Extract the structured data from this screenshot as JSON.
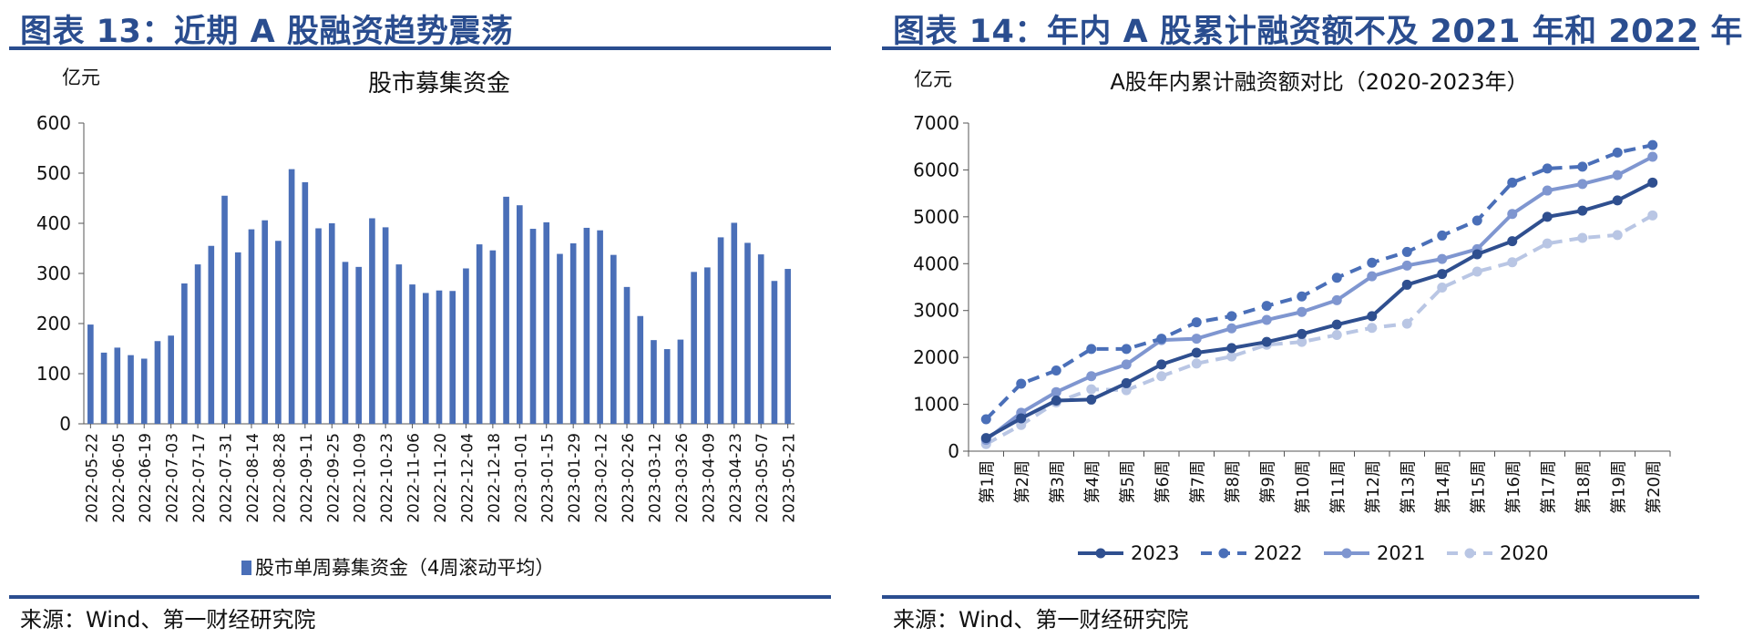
{
  "left": {
    "fig_title": "图表 13：近期 A 股融资趋势震荡",
    "source": "来源：Wind、第一财经研究院",
    "chart_data": {
      "type": "bar",
      "title": "股市募集资金",
      "unit": "亿元",
      "ylim": [
        0,
        600
      ],
      "yticks": [
        0,
        100,
        200,
        300,
        400,
        500,
        600
      ],
      "legend": "股市单周募集资金（4周滚动平均）",
      "legend_position": "bottom",
      "color": "#4a6fb8",
      "tick_labels": [
        "2022-05-22",
        "2022-06-05",
        "2022-06-19",
        "2022-07-03",
        "2022-07-17",
        "2022-07-31",
        "2022-08-14",
        "2022-08-28",
        "2022-09-11",
        "2022-09-25",
        "2022-10-09",
        "2022-10-23",
        "2022-11-06",
        "2022-11-20",
        "2022-12-04",
        "2022-12-18",
        "2023-01-01",
        "2023-01-15",
        "2023-01-29",
        "2023-02-12",
        "2023-02-26",
        "2023-03-12",
        "2023-03-26",
        "2023-04-09",
        "2023-04-23",
        "2023-05-07",
        "2023-05-21"
      ],
      "values": [
        198,
        142,
        152,
        137,
        130,
        165,
        176,
        280,
        318,
        355,
        455,
        342,
        388,
        406,
        365,
        508,
        482,
        390,
        400,
        323,
        313,
        410,
        392,
        318,
        278,
        261,
        266,
        265,
        310,
        358,
        346,
        453,
        436,
        389,
        402,
        339,
        360,
        391,
        386,
        337,
        273,
        215,
        167,
        149,
        168,
        303,
        312,
        372,
        401,
        361,
        338,
        285,
        309
      ]
    }
  },
  "right": {
    "fig_title": "图表 14：年内 A 股累计融资额不及 2021 年和 2022 年",
    "source": "来源：Wind、第一财经研究院",
    "chart_data": {
      "type": "line",
      "title": "A股年内累计融资额对比（2020-2023年）",
      "unit": "亿元",
      "ylim": [
        0,
        7000
      ],
      "yticks": [
        0,
        1000,
        2000,
        3000,
        4000,
        5000,
        6000,
        7000
      ],
      "categories": [
        "第1周",
        "第2周",
        "第3周",
        "第4周",
        "第5周",
        "第6周",
        "第7周",
        "第8周",
        "第9周",
        "第10周",
        "第11周",
        "第12周",
        "第13周",
        "第14周",
        "第15周",
        "第16周",
        "第17周",
        "第18周",
        "第19周",
        "第20周"
      ],
      "legend_position": "bottom",
      "series": [
        {
          "name": "2023",
          "color": "#2f4f8f",
          "style": "solid",
          "values": [
            280,
            700,
            1080,
            1100,
            1450,
            1850,
            2100,
            2200,
            2330,
            2500,
            2700,
            2880,
            3550,
            3780,
            4200,
            4480,
            5000,
            5130,
            5350,
            5730
          ]
        },
        {
          "name": "2022",
          "color": "#4a6fb8",
          "style": "dashed",
          "values": [
            680,
            1440,
            1720,
            2180,
            2180,
            2400,
            2750,
            2880,
            3100,
            3300,
            3700,
            4020,
            4250,
            4600,
            4920,
            5730,
            6030,
            6070,
            6370,
            6530
          ]
        },
        {
          "name": "2021",
          "color": "#7f96d0",
          "style": "solid",
          "values": [
            240,
            820,
            1260,
            1600,
            1850,
            2370,
            2400,
            2620,
            2800,
            2970,
            3220,
            3730,
            3960,
            4100,
            4310,
            5060,
            5560,
            5700,
            5890,
            6280
          ]
        },
        {
          "name": "2020",
          "color": "#b9c6e4",
          "style": "dashed",
          "values": [
            150,
            560,
            1040,
            1320,
            1300,
            1600,
            1870,
            2020,
            2270,
            2330,
            2480,
            2630,
            2720,
            3490,
            3830,
            4030,
            4430,
            4550,
            4610,
            5030
          ]
        }
      ]
    }
  }
}
